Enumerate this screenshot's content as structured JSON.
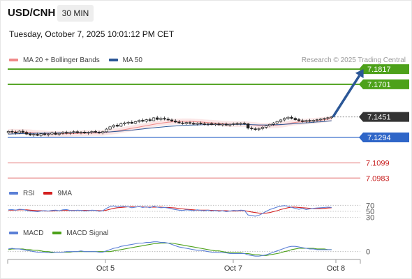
{
  "header": {
    "symbol": "USD/CNH",
    "timeframe": "30 MIN",
    "timestamp": "Tuesday, October 7, 2025 10:01:12 PM CET",
    "copyright": "Research © 2025 Trading Central"
  },
  "legend": {
    "price": [
      {
        "label": "MA 20 + Bollinger Bands",
        "color": "#f08a8a"
      },
      {
        "label": "MA 50",
        "color": "#2b5797"
      }
    ],
    "rsi": [
      {
        "label": "RSI",
        "color": "#5b7fd6"
      },
      {
        "label": "9MA",
        "color": "#d42020"
      }
    ],
    "macd": [
      {
        "label": "MACD",
        "color": "#5b7fd6"
      },
      {
        "label": "MACD Signal",
        "color": "#4da11a"
      }
    ]
  },
  "colors": {
    "resistance": "#4da11a",
    "support": "#2f66c8",
    "minor_support": "#e88a8a",
    "current": "#333333",
    "arrow": "#2b5797"
  },
  "chart_data": {
    "type": "candlestick",
    "x_ticks": [
      "Oct 5",
      "Oct 7",
      "Oct 8"
    ],
    "price_range": [
      7.0915,
      7.1855
    ],
    "levels": [
      {
        "value": 7.1817,
        "label": "7.1817",
        "kind": "resistance"
      },
      {
        "value": 7.1701,
        "label": "7.1701",
        "kind": "resistance"
      },
      {
        "value": 7.1451,
        "label": "7.1451",
        "kind": "current"
      },
      {
        "value": 7.1294,
        "label": "7.1294",
        "kind": "support"
      },
      {
        "value": 7.1099,
        "label": "7.1099",
        "kind": "minor_support"
      },
      {
        "value": 7.0983,
        "label": "7.0983",
        "kind": "minor_support"
      }
    ],
    "candles": [
      [
        7.133,
        7.1349,
        7.1318,
        7.134
      ],
      [
        7.134,
        7.1355,
        7.1322,
        7.1335
      ],
      [
        7.1335,
        7.1346,
        7.1316,
        7.1328
      ],
      [
        7.1328,
        7.135,
        7.132,
        7.1342
      ],
      [
        7.1342,
        7.1356,
        7.1325,
        7.1332
      ],
      [
        7.1332,
        7.1345,
        7.1312,
        7.132
      ],
      [
        7.132,
        7.1333,
        7.1305,
        7.1312
      ],
      [
        7.1312,
        7.1326,
        7.13,
        7.1318
      ],
      [
        7.1318,
        7.133,
        7.1304,
        7.131
      ],
      [
        7.131,
        7.1328,
        7.1299,
        7.1322
      ],
      [
        7.1322,
        7.1335,
        7.1308,
        7.1315
      ],
      [
        7.1315,
        7.1327,
        7.1302,
        7.132
      ],
      [
        7.132,
        7.1338,
        7.131,
        7.1328
      ],
      [
        7.1328,
        7.134,
        7.1312,
        7.1318
      ],
      [
        7.1318,
        7.1332,
        7.1306,
        7.1325
      ],
      [
        7.1325,
        7.1342,
        7.1315,
        7.1333
      ],
      [
        7.1333,
        7.1345,
        7.1318,
        7.1326
      ],
      [
        7.1326,
        7.134,
        7.1314,
        7.1332
      ],
      [
        7.1332,
        7.1348,
        7.132,
        7.1338
      ],
      [
        7.1338,
        7.135,
        7.1322,
        7.133
      ],
      [
        7.133,
        7.1342,
        7.1318,
        7.1335
      ],
      [
        7.1335,
        7.1347,
        7.1321,
        7.1328
      ],
      [
        7.1328,
        7.134,
        7.1315,
        7.1333
      ],
      [
        7.1333,
        7.1346,
        7.132,
        7.134
      ],
      [
        7.134,
        7.1352,
        7.1326,
        7.1334
      ],
      [
        7.1334,
        7.1344,
        7.132,
        7.1329
      ],
      [
        7.1329,
        7.1345,
        7.1318,
        7.1338
      ],
      [
        7.1338,
        7.1366,
        7.133,
        7.1358
      ],
      [
        7.1358,
        7.1382,
        7.135,
        7.1375
      ],
      [
        7.1375,
        7.1395,
        7.1365,
        7.1388
      ],
      [
        7.1388,
        7.1402,
        7.1372,
        7.138
      ],
      [
        7.138,
        7.1408,
        7.1374,
        7.1398
      ],
      [
        7.1398,
        7.1415,
        7.1385,
        7.1405
      ],
      [
        7.1405,
        7.142,
        7.1392,
        7.141
      ],
      [
        7.141,
        7.1425,
        7.1396,
        7.1402
      ],
      [
        7.1402,
        7.1422,
        7.1395,
        7.1415
      ],
      [
        7.1415,
        7.1432,
        7.1404,
        7.1425
      ],
      [
        7.1425,
        7.144,
        7.141,
        7.1418
      ],
      [
        7.1418,
        7.1436,
        7.1408,
        7.143
      ],
      [
        7.143,
        7.1445,
        7.1415,
        7.1422
      ],
      [
        7.1422,
        7.145,
        7.1418,
        7.1444
      ],
      [
        7.1444,
        7.146,
        7.1425,
        7.1432
      ],
      [
        7.1432,
        7.1452,
        7.142,
        7.144
      ],
      [
        7.144,
        7.1454,
        7.1425,
        7.1434
      ],
      [
        7.1434,
        7.1448,
        7.1418,
        7.1428
      ],
      [
        7.1428,
        7.144,
        7.1412,
        7.142
      ],
      [
        7.142,
        7.1434,
        7.1405,
        7.1412
      ],
      [
        7.1412,
        7.1428,
        7.1398,
        7.1405
      ],
      [
        7.1405,
        7.1418,
        7.1392,
        7.14
      ],
      [
        7.14,
        7.1414,
        7.139,
        7.1408
      ],
      [
        7.1408,
        7.142,
        7.1394,
        7.1402
      ],
      [
        7.1402,
        7.1415,
        7.139,
        7.1396
      ],
      [
        7.1396,
        7.141,
        7.1385,
        7.1404
      ],
      [
        7.1404,
        7.1416,
        7.139,
        7.1398
      ],
      [
        7.1398,
        7.1412,
        7.1386,
        7.1394
      ],
      [
        7.1394,
        7.1406,
        7.138,
        7.14
      ],
      [
        7.14,
        7.1412,
        7.1386,
        7.1392
      ],
      [
        7.1392,
        7.1405,
        7.138,
        7.1398
      ],
      [
        7.1398,
        7.141,
        7.1385,
        7.139
      ],
      [
        7.139,
        7.1404,
        7.1378,
        7.1396
      ],
      [
        7.1396,
        7.1408,
        7.1382,
        7.1388
      ],
      [
        7.1388,
        7.14,
        7.1376,
        7.1394
      ],
      [
        7.1394,
        7.1408,
        7.1384,
        7.14
      ],
      [
        7.14,
        7.1412,
        7.1388,
        7.1396
      ],
      [
        7.1396,
        7.141,
        7.1386,
        7.1402
      ],
      [
        7.1402,
        7.1414,
        7.139,
        7.1398
      ],
      [
        7.1398,
        7.1404,
        7.1355,
        7.1365
      ],
      [
        7.1365,
        7.1378,
        7.1348,
        7.136
      ],
      [
        7.136,
        7.1372,
        7.1345,
        7.1355
      ],
      [
        7.1355,
        7.137,
        7.1342,
        7.1362
      ],
      [
        7.1362,
        7.138,
        7.135,
        7.1372
      ],
      [
        7.1372,
        7.139,
        7.136,
        7.1384
      ],
      [
        7.1384,
        7.14,
        7.1372,
        7.1394
      ],
      [
        7.1394,
        7.1412,
        7.1382,
        7.1405
      ],
      [
        7.1405,
        7.1422,
        7.1394,
        7.1416
      ],
      [
        7.1416,
        7.1435,
        7.1404,
        7.1428
      ],
      [
        7.1428,
        7.1448,
        7.1416,
        7.144
      ],
      [
        7.144,
        7.1458,
        7.1428,
        7.1448
      ],
      [
        7.1448,
        7.1462,
        7.1432,
        7.144
      ],
      [
        7.144,
        7.1452,
        7.1422,
        7.143
      ],
      [
        7.143,
        7.1444,
        7.1414,
        7.1422
      ],
      [
        7.1422,
        7.1436,
        7.1408,
        7.1416
      ],
      [
        7.1416,
        7.143,
        7.1404,
        7.1424
      ],
      [
        7.1424,
        7.1436,
        7.141,
        7.1418
      ],
      [
        7.1418,
        7.1432,
        7.1406,
        7.1425
      ],
      [
        7.1425,
        7.1438,
        7.1414,
        7.143
      ],
      [
        7.143,
        7.1442,
        7.1418,
        7.1434
      ],
      [
        7.1434,
        7.1446,
        7.1422,
        7.144
      ],
      [
        7.144,
        7.1452,
        7.1428,
        7.1445
      ],
      [
        7.1445,
        7.1456,
        7.1434,
        7.1451
      ]
    ],
    "ma20": [
      7.1336,
      7.1338,
      7.1337,
      7.1336,
      7.1336,
      7.1335,
      7.1333,
      7.133,
      7.1328,
      7.1326,
      7.1324,
      7.1322,
      7.1322,
      7.1322,
      7.1322,
      7.1322,
      7.1322,
      7.1323,
      7.1324,
      7.1325,
      7.1326,
      7.1326,
      7.1327,
      7.1328,
      7.1328,
      7.1328,
      7.1329,
      7.1332,
      7.1336,
      7.134,
      7.1344,
      7.1349,
      7.1354,
      7.1359,
      7.1364,
      7.1369,
      7.1374,
      7.1379,
      7.1384,
      7.1389,
      7.1394,
      7.1399,
      7.1403,
      7.1407,
      7.141,
      7.1413,
      7.1415,
      7.1416,
      7.1417,
      7.1417,
      7.1417,
      7.1416,
      7.1414,
      7.1412,
      7.141,
      7.1408,
      7.1406,
      7.1404,
      7.1402,
      7.14,
      7.1398,
      7.1396,
      7.1396,
      7.1396,
      7.1396,
      7.1396,
      7.1394,
      7.1391,
      7.1388,
      7.1385,
      7.1384,
      7.1384,
      7.1385,
      7.1386,
      7.1388,
      7.1391,
      7.1395,
      7.14,
      7.1405,
      7.1409,
      7.1412,
      7.1414,
      7.1416,
      7.1418,
      7.142,
      7.1423,
      7.1426,
      7.143,
      7.1434,
      7.1439
    ],
    "ma50": [
      7.132,
      7.1321,
      7.1322,
      7.1323,
      7.1324,
      7.1324,
      7.1325,
      7.1325,
      7.1326,
      7.1326,
      7.1327,
      7.1327,
      7.1328,
      7.1328,
      7.1329,
      7.1329,
      7.133,
      7.133,
      7.1331,
      7.1331,
      7.1332,
      7.1332,
      7.1333,
      7.1333,
      7.1334,
      7.1334,
      7.1335,
      7.1336,
      7.1337,
      7.1339,
      7.1341,
      7.1343,
      7.1345,
      7.1348,
      7.135,
      7.1353,
      7.1356,
      7.1359,
      7.1362,
      7.1365,
      7.1368,
      7.1371,
      7.1373,
      7.1376,
      7.1378,
      7.138,
      7.1382,
      7.1384,
      7.1386,
      7.1387,
      7.1388,
      7.1389,
      7.139,
      7.1391,
      7.1392,
      7.1392,
      7.1393,
      7.1393,
      7.1393,
      7.1394,
      7.1394,
      7.1394,
      7.1394,
      7.1394,
      7.1394,
      7.1394,
      7.1393,
      7.1392,
      7.1391,
      7.139,
      7.139,
      7.139,
      7.139,
      7.1391,
      7.1392,
      7.1393,
      7.1394,
      7.1396,
      7.1398,
      7.14,
      7.1402,
      7.1404,
      7.1406,
      7.1408,
      7.141,
      7.1412,
      7.1414,
      7.1416,
      7.1419,
      7.1422
    ],
    "bb_width": 0.0022,
    "projection": {
      "from_index": 89,
      "from_value": 7.1451,
      "to_index": 98,
      "to_value": 7.1817
    },
    "rsi": {
      "range": [
        20,
        80
      ],
      "ticks": [
        70,
        50,
        30
      ],
      "rsi": [
        55,
        56,
        54,
        57,
        56,
        53,
        51,
        50,
        49,
        51,
        52,
        51,
        53,
        54,
        52,
        55,
        56,
        53,
        52,
        54,
        53,
        51,
        52,
        54,
        53,
        50,
        52,
        60,
        66,
        68,
        64,
        67,
        66,
        65,
        62,
        64,
        66,
        63,
        65,
        62,
        67,
        64,
        62,
        63,
        61,
        58,
        56,
        54,
        53,
        55,
        54,
        52,
        55,
        53,
        52,
        54,
        51,
        53,
        50,
        52,
        49,
        51,
        53,
        52,
        54,
        53,
        38,
        36,
        34,
        37,
        43,
        50,
        56,
        60,
        64,
        67,
        69,
        67,
        63,
        60,
        57,
        60,
        56,
        58,
        60,
        61,
        62,
        63,
        64,
        63
      ],
      "ma9": [
        54,
        54,
        54,
        55,
        55,
        55,
        54,
        53,
        52,
        52,
        51,
        51,
        51,
        52,
        52,
        53,
        53,
        53,
        53,
        53,
        53,
        53,
        53,
        53,
        53,
        52,
        52,
        54,
        57,
        60,
        62,
        63,
        64,
        65,
        65,
        65,
        65,
        65,
        64,
        64,
        64,
        64,
        64,
        63,
        63,
        62,
        61,
        59,
        58,
        57,
        56,
        55,
        54,
        54,
        54,
        54,
        53,
        53,
        52,
        52,
        52,
        51,
        51,
        51,
        52,
        52,
        50,
        48,
        46,
        44,
        43,
        44,
        46,
        49,
        52,
        56,
        59,
        62,
        64,
        64,
        63,
        62,
        61,
        60,
        59,
        59,
        59,
        60,
        61,
        62
      ]
    },
    "macd": {
      "range": [
        -0.001,
        0.002
      ],
      "zero_label": "0",
      "macd": [
        0.0004,
        0.0005,
        0.0004,
        0.0004,
        0.0003,
        0.0002,
        0.0001,
        0.0,
        -0.0001,
        -0.0001,
        -0.0001,
        -0.0002,
        -0.0002,
        -0.0001,
        -0.0001,
        -0.0001,
        0.0,
        0.0,
        0.0,
        0.0,
        0.0001,
        0.0,
        0.0,
        0.0,
        0.0,
        -0.0001,
        -0.0001,
        0.0001,
        0.0003,
        0.0005,
        0.0006,
        0.0008,
        0.0009,
        0.001,
        0.0011,
        0.0012,
        0.0013,
        0.0013,
        0.0014,
        0.0014,
        0.0015,
        0.0015,
        0.0014,
        0.0014,
        0.0013,
        0.0011,
        0.0009,
        0.0007,
        0.0006,
        0.0005,
        0.0004,
        0.0003,
        0.0002,
        0.0002,
        0.0001,
        0.0,
        -0.0001,
        -0.0001,
        -0.0002,
        -0.0002,
        -0.0002,
        -0.0003,
        -0.0003,
        -0.0003,
        -0.0003,
        -0.0003,
        -0.0005,
        -0.0006,
        -0.0007,
        -0.0007,
        -0.0006,
        -0.0005,
        -0.0003,
        -0.0001,
        0.0001,
        0.0003,
        0.0005,
        0.0007,
        0.0008,
        0.0008,
        0.0007,
        0.0006,
        0.0005,
        0.0004,
        0.0004,
        0.0003,
        0.0003,
        0.0003,
        0.0003,
        0.0003
      ],
      "signal": [
        0.0003,
        0.0004,
        0.0004,
        0.0004,
        0.0004,
        0.0003,
        0.0003,
        0.0002,
        0.0002,
        0.0001,
        0.0,
        0.0,
        -0.0001,
        -0.0001,
        -0.0001,
        -0.0001,
        -0.0001,
        -0.0001,
        0.0,
        0.0,
        0.0,
        0.0,
        0.0,
        0.0,
        0.0,
        0.0,
        0.0,
        0.0,
        0.0,
        0.0001,
        0.0002,
        0.0003,
        0.0004,
        0.0005,
        0.0006,
        0.0007,
        0.0008,
        0.0009,
        0.001,
        0.0011,
        0.0012,
        0.0012,
        0.0013,
        0.0013,
        0.0013,
        0.0013,
        0.0012,
        0.0011,
        0.001,
        0.0009,
        0.0008,
        0.0007,
        0.0006,
        0.0005,
        0.0004,
        0.0003,
        0.0002,
        0.0001,
        0.0001,
        0.0,
        -0.0001,
        -0.0001,
        -0.0002,
        -0.0002,
        -0.0002,
        -0.0003,
        -0.0003,
        -0.0004,
        -0.0005,
        -0.0005,
        -0.0006,
        -0.0006,
        -0.0005,
        -0.0004,
        -0.0003,
        -0.0002,
        0.0,
        0.0001,
        0.0003,
        0.0004,
        0.0005,
        0.0005,
        0.0005,
        0.0005,
        0.0005,
        0.0004,
        0.0004,
        0.0004,
        0.0003,
        0.0003
      ]
    }
  }
}
